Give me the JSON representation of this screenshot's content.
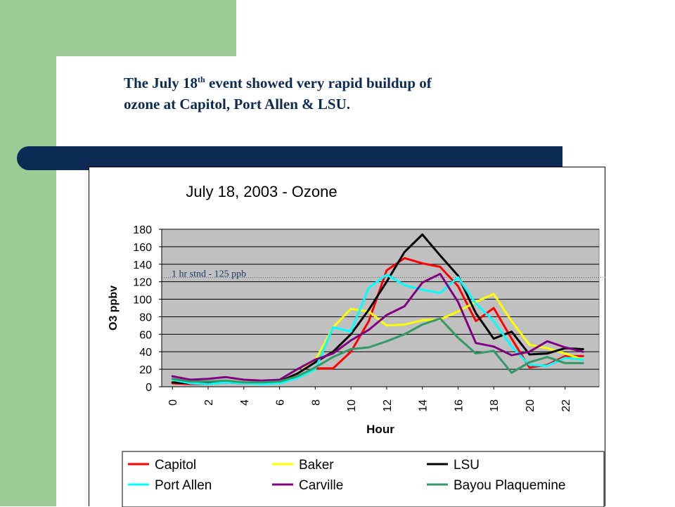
{
  "slide": {
    "title_before_sup": "The July 18",
    "title_sup": "th",
    "title_after_sup": " event showed very rapid buildup of",
    "title_line2": "ozone at Capitol, Port Allen & LSU.",
    "colors": {
      "green_band": "#9dcb95",
      "navy": "#0c2a54"
    }
  },
  "chart_data": {
    "type": "line",
    "title": "July 18, 2003 - Ozone",
    "xlabel": "Hour",
    "ylabel": "O3 ppbv",
    "xlim": [
      0,
      23
    ],
    "ylim": [
      0,
      180
    ],
    "x_tick_labels": [
      "0",
      "2",
      "4",
      "6",
      "8",
      "10",
      "12",
      "14",
      "16",
      "18",
      "20",
      "22"
    ],
    "y_tick_labels": [
      "0",
      "20",
      "40",
      "60",
      "80",
      "100",
      "120",
      "140",
      "160",
      "180"
    ],
    "grid": true,
    "plot_background": "#c0c0c0",
    "legend_position": "bottom",
    "reference_line": {
      "value": 125,
      "label": "1 hr stnd - 125 ppb"
    },
    "x": [
      0,
      1,
      2,
      3,
      4,
      5,
      6,
      7,
      8,
      9,
      10,
      11,
      12,
      13,
      14,
      15,
      16,
      17,
      18,
      19,
      20,
      21,
      22,
      23
    ],
    "series": [
      {
        "name": "Capitol",
        "color": "#ff0000",
        "values": [
          4,
          3,
          3,
          5,
          5,
          4,
          5,
          12,
          21,
          21,
          40,
          75,
          133,
          147,
          141,
          137,
          115,
          75,
          90,
          55,
          22,
          25,
          35,
          35
        ]
      },
      {
        "name": "Baker",
        "color": "#ffff00",
        "values": [
          6,
          5,
          5,
          7,
          5,
          4,
          6,
          15,
          30,
          68,
          89,
          86,
          70,
          71,
          76,
          77,
          86,
          97,
          106,
          75,
          48,
          44,
          38,
          31
        ]
      },
      {
        "name": "LSU",
        "color": "#000000",
        "values": [
          5,
          4,
          4,
          5,
          4,
          4,
          6,
          15,
          28,
          40,
          60,
          88,
          120,
          154,
          174,
          150,
          127,
          84,
          55,
          63,
          37,
          38,
          44,
          43
        ]
      },
      {
        "name": "Port Allen",
        "color": "#00ffff",
        "values": [
          8,
          4,
          3,
          5,
          4,
          3,
          4,
          10,
          20,
          68,
          63,
          113,
          128,
          116,
          111,
          107,
          125,
          95,
          75,
          46,
          25,
          24,
          33,
          31
        ]
      },
      {
        "name": "Carville",
        "color": "#800080",
        "values": [
          12,
          8,
          9,
          11,
          8,
          7,
          8,
          20,
          31,
          38,
          53,
          65,
          82,
          92,
          119,
          129,
          97,
          50,
          46,
          36,
          40,
          52,
          45,
          40
        ]
      },
      {
        "name": "Bayou Plaquemine",
        "color": "#339966",
        "values": [
          9,
          6,
          6,
          7,
          5,
          5,
          6,
          12,
          22,
          34,
          43,
          45,
          52,
          60,
          71,
          78,
          56,
          38,
          41,
          16,
          28,
          34,
          27,
          27
        ]
      }
    ]
  }
}
